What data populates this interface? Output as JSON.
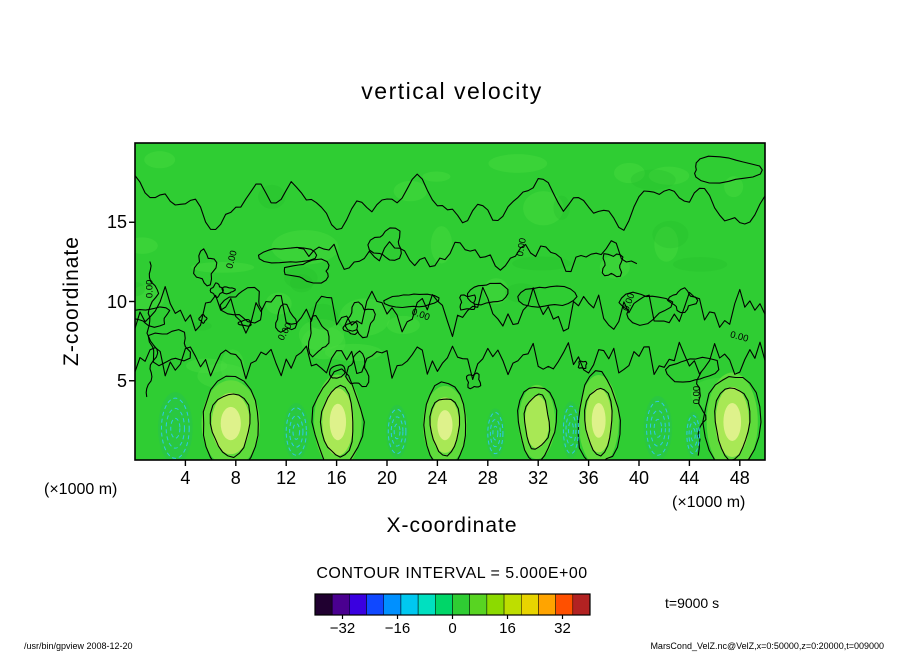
{
  "chart_data": {
    "type": "contour",
    "title": "vertical velocity",
    "xlabel": "X-coordinate",
    "ylabel": "Z-coordinate",
    "x_unit": "(×1000 m)",
    "y_unit": "(×1000 m)",
    "xlim": [
      0,
      50
    ],
    "ylim": [
      0,
      20
    ],
    "x_ticks": [
      4,
      8,
      12,
      16,
      20,
      24,
      28,
      32,
      36,
      40,
      44,
      48
    ],
    "y_ticks": [
      5,
      10,
      15
    ],
    "contour_interval": 5.0,
    "contour_interval_label": "CONTOUR INTERVAL = 5.000E+00",
    "zero_contour_label": "0.00",
    "time_label": "t=9000 s",
    "field_color": "#2fcd33",
    "mottle_light": "#4bdc42",
    "mottle_dark": "#24bd2a",
    "contour_line_color": "#000000",
    "downdraft_line_color": "#30c8e6",
    "updraft_colors": [
      "#5fdc3c",
      "#a8e855",
      "#def28b"
    ],
    "colorbar": {
      "min": -40,
      "max": 40,
      "ticks": [
        "−32",
        "−16",
        "0",
        "16",
        "32"
      ],
      "tick_values": [
        -32,
        -16,
        0,
        16,
        32
      ],
      "colors": [
        "#200030",
        "#4a0090",
        "#3a00e0",
        "#1048ff",
        "#0090ff",
        "#00c8f0",
        "#00e0c0",
        "#00d668",
        "#2fcd33",
        "#58d422",
        "#8cda00",
        "#bede00",
        "#e8d400",
        "#ffa400",
        "#ff5000",
        "#b22222"
      ]
    },
    "updrafts": [
      {
        "x": 7.6,
        "z": 2.3,
        "rx": 1.6,
        "rz": 2.1,
        "bright": 3
      },
      {
        "x": 16.1,
        "z": 2.4,
        "rx": 1.3,
        "rz": 2.3,
        "bright": 3
      },
      {
        "x": 24.6,
        "z": 2.2,
        "rx": 1.2,
        "rz": 1.9,
        "bright": 3
      },
      {
        "x": 31.9,
        "z": 2.4,
        "rx": 1.0,
        "rz": 1.8,
        "bright": 2
      },
      {
        "x": 36.8,
        "z": 2.5,
        "rx": 1.1,
        "rz": 2.2,
        "bright": 3
      },
      {
        "x": 47.4,
        "z": 2.4,
        "rx": 1.4,
        "rz": 2.4,
        "bright": 3
      }
    ],
    "downdrafts": [
      {
        "x": 3.2,
        "z": 2.0,
        "rx": 1.1,
        "rz": 1.9
      },
      {
        "x": 12.8,
        "z": 1.8,
        "rx": 0.8,
        "rz": 1.5
      },
      {
        "x": 20.8,
        "z": 1.8,
        "rx": 0.7,
        "rz": 1.4
      },
      {
        "x": 28.6,
        "z": 1.7,
        "rx": 0.6,
        "rz": 1.3
      },
      {
        "x": 34.6,
        "z": 1.9,
        "rx": 0.6,
        "rz": 1.5
      },
      {
        "x": 41.5,
        "z": 2.0,
        "rx": 0.9,
        "rz": 1.7
      },
      {
        "x": 44.3,
        "z": 1.6,
        "rx": 0.5,
        "rz": 1.2
      }
    ],
    "zero_labels": [
      {
        "x": 1.4,
        "z": 10.8,
        "rot": -90
      },
      {
        "x": 7.9,
        "z": 12.6,
        "rot": -75
      },
      {
        "x": 12.1,
        "z": 8.0,
        "rot": -60
      },
      {
        "x": 22.6,
        "z": 9.0,
        "rot": 20
      },
      {
        "x": 30.9,
        "z": 13.4,
        "rot": -80
      },
      {
        "x": 39.4,
        "z": 9.9,
        "rot": -70
      },
      {
        "x": 44.8,
        "z": 4.1,
        "rot": -90
      },
      {
        "x": 47.9,
        "z": 7.6,
        "rot": 15
      }
    ]
  },
  "footer": {
    "left": "/usr/bin/gpview  2008-12-20",
    "right": "MarsCond_VelZ.nc@VelZ,x=0:50000,z=0:20000,t=009000"
  }
}
